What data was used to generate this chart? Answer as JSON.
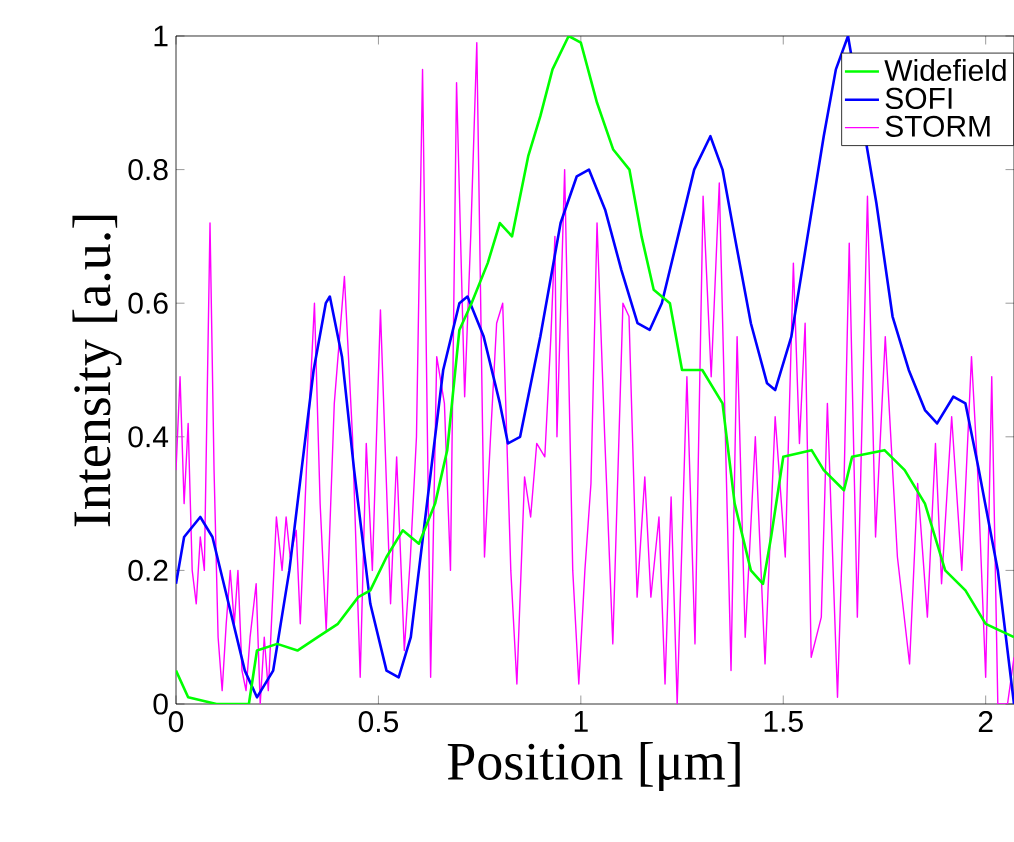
{
  "chart_data": {
    "type": "line",
    "xlabel": "Position [μm]",
    "ylabel": "Intensity [a.u.]",
    "xlim": [
      0,
      2.07
    ],
    "ylim": [
      0,
      1
    ],
    "xticks": [
      0,
      0.5,
      1,
      1.5,
      2
    ],
    "yticks": [
      0,
      0.2,
      0.4,
      0.6,
      0.8,
      1
    ],
    "grid": false,
    "legend": "top right",
    "marker": "none",
    "line_style": "solid",
    "series": [
      {
        "name": "Widefield",
        "color": "#00ff00",
        "x": [
          0,
          0.03,
          0.1,
          0.18,
          0.2,
          0.25,
          0.3,
          0.35,
          0.4,
          0.45,
          0.48,
          0.52,
          0.56,
          0.6,
          0.64,
          0.67,
          0.7,
          0.73,
          0.77,
          0.8,
          0.83,
          0.87,
          0.9,
          0.93,
          0.97,
          1.0,
          1.04,
          1.08,
          1.12,
          1.15,
          1.18,
          1.22,
          1.25,
          1.3,
          1.35,
          1.38,
          1.42,
          1.45,
          1.47,
          1.5,
          1.57,
          1.6,
          1.65,
          1.67,
          1.75,
          1.8,
          1.85,
          1.9,
          1.95,
          2.0,
          2.07
        ],
        "values": [
          0.05,
          0.01,
          0.0,
          0.0,
          0.08,
          0.09,
          0.08,
          0.1,
          0.12,
          0.16,
          0.17,
          0.22,
          0.26,
          0.24,
          0.3,
          0.38,
          0.56,
          0.6,
          0.66,
          0.72,
          0.7,
          0.82,
          0.88,
          0.95,
          1.0,
          0.99,
          0.9,
          0.83,
          0.8,
          0.7,
          0.62,
          0.6,
          0.5,
          0.5,
          0.45,
          0.3,
          0.2,
          0.18,
          0.25,
          0.37,
          0.38,
          0.35,
          0.32,
          0.37,
          0.38,
          0.35,
          0.3,
          0.2,
          0.17,
          0.12,
          0.1
        ]
      },
      {
        "name": "SOFI",
        "color": "#0000ff",
        "x": [
          0,
          0.02,
          0.06,
          0.09,
          0.13,
          0.17,
          0.2,
          0.24,
          0.28,
          0.31,
          0.34,
          0.37,
          0.38,
          0.41,
          0.44,
          0.48,
          0.52,
          0.55,
          0.58,
          0.62,
          0.66,
          0.7,
          0.72,
          0.76,
          0.8,
          0.82,
          0.85,
          0.9,
          0.95,
          0.99,
          1.02,
          1.06,
          1.1,
          1.14,
          1.17,
          1.2,
          1.24,
          1.28,
          1.32,
          1.35,
          1.38,
          1.42,
          1.46,
          1.48,
          1.52,
          1.56,
          1.6,
          1.63,
          1.66,
          1.7,
          1.73,
          1.77,
          1.81,
          1.85,
          1.88,
          1.92,
          1.95,
          1.98,
          2.03,
          2.07
        ],
        "values": [
          0.18,
          0.25,
          0.28,
          0.25,
          0.15,
          0.05,
          0.01,
          0.05,
          0.2,
          0.35,
          0.5,
          0.6,
          0.61,
          0.52,
          0.35,
          0.15,
          0.05,
          0.04,
          0.1,
          0.3,
          0.5,
          0.6,
          0.61,
          0.55,
          0.45,
          0.39,
          0.4,
          0.55,
          0.72,
          0.79,
          0.8,
          0.74,
          0.65,
          0.57,
          0.56,
          0.6,
          0.7,
          0.8,
          0.85,
          0.8,
          0.7,
          0.57,
          0.48,
          0.47,
          0.55,
          0.7,
          0.85,
          0.95,
          1.0,
          null,
          0.75,
          0.58,
          0.5,
          0.44,
          0.42,
          0.46,
          0.45,
          0.36,
          0.2,
          0.0
        ]
      },
      {
        "name": "STORM",
        "color": "#ff00ff",
        "x": [
          0,
          0.01,
          0.02,
          0.03,
          0.04,
          0.05,
          0.06,
          0.07,
          0.084,
          0.094,
          0.104,
          0.114,
          0.124,
          0.134,
          0.144,
          0.153,
          0.163,
          0.173,
          0.183,
          0.198,
          0.208,
          0.218,
          0.228,
          0.248,
          0.262,
          0.272,
          0.282,
          0.297,
          0.307,
          0.322,
          0.342,
          0.356,
          0.371,
          0.391,
          0.416,
          0.436,
          0.455,
          0.47,
          0.485,
          0.505,
          0.53,
          0.545,
          0.564,
          0.579,
          0.594,
          0.609,
          0.629,
          0.644,
          0.663,
          0.678,
          0.693,
          0.713,
          0.728,
          0.743,
          0.762,
          0.777,
          0.792,
          0.807,
          0.827,
          0.842,
          0.861,
          0.876,
          0.891,
          0.911,
          0.926,
          0.936,
          0.941,
          0.96,
          0.98,
          0.995,
          1.01,
          1.025,
          1.04,
          1.059,
          1.079,
          1.104,
          1.119,
          1.139,
          1.158,
          1.173,
          1.193,
          1.208,
          1.223,
          1.238,
          1.262,
          1.282,
          1.302,
          1.322,
          1.342,
          1.371,
          1.386,
          1.406,
          1.431,
          1.455,
          1.48,
          1.505,
          1.525,
          1.54,
          1.554,
          1.569,
          1.594,
          1.609,
          1.634,
          1.649,
          1.663,
          1.683,
          1.708,
          1.728,
          1.752,
          1.782,
          1.812,
          1.832,
          1.856,
          1.876,
          1.891,
          1.916,
          1.941,
          1.965,
          1.98,
          2.0,
          2.015,
          2.03,
          2.054,
          2.07
        ],
        "values": [
          0.35,
          0.49,
          0.3,
          0.42,
          0.2,
          0.15,
          0.25,
          0.2,
          0.72,
          0.35,
          0.1,
          0.02,
          0.12,
          0.2,
          0.12,
          0.2,
          0.05,
          0.02,
          0.1,
          0.18,
          0.0,
          0.1,
          0.02,
          0.28,
          0.2,
          0.28,
          0.22,
          0.26,
          0.12,
          0.35,
          0.6,
          0.3,
          0.11,
          0.45,
          0.64,
          0.4,
          0.04,
          0.39,
          0.2,
          0.59,
          0.15,
          0.37,
          0.08,
          0.22,
          0.4,
          0.95,
          0.04,
          0.52,
          0.45,
          0.2,
          0.93,
          0.46,
          0.7,
          0.99,
          0.22,
          0.4,
          0.57,
          0.6,
          0.2,
          0.03,
          0.34,
          0.28,
          0.39,
          0.37,
          0.55,
          0.7,
          0.4,
          0.8,
          0.2,
          0.03,
          0.2,
          0.33,
          0.72,
          0.4,
          0.09,
          0.6,
          0.58,
          0.16,
          0.34,
          0.16,
          0.28,
          0.03,
          0.31,
          0.0,
          0.49,
          0.09,
          0.76,
          0.49,
          0.78,
          0.05,
          0.55,
          0.1,
          0.4,
          0.06,
          0.43,
          0.22,
          0.66,
          0.39,
          0.57,
          0.07,
          0.13,
          0.45,
          0.01,
          0.3,
          0.69,
          0.13,
          0.76,
          0.25,
          0.55,
          0.22,
          0.06,
          0.33,
          0.13,
          0.39,
          0.18,
          0.43,
          0.2,
          0.52,
          0.35,
          0.04,
          0.49,
          0.0,
          0.0,
          0.07
        ]
      }
    ]
  }
}
